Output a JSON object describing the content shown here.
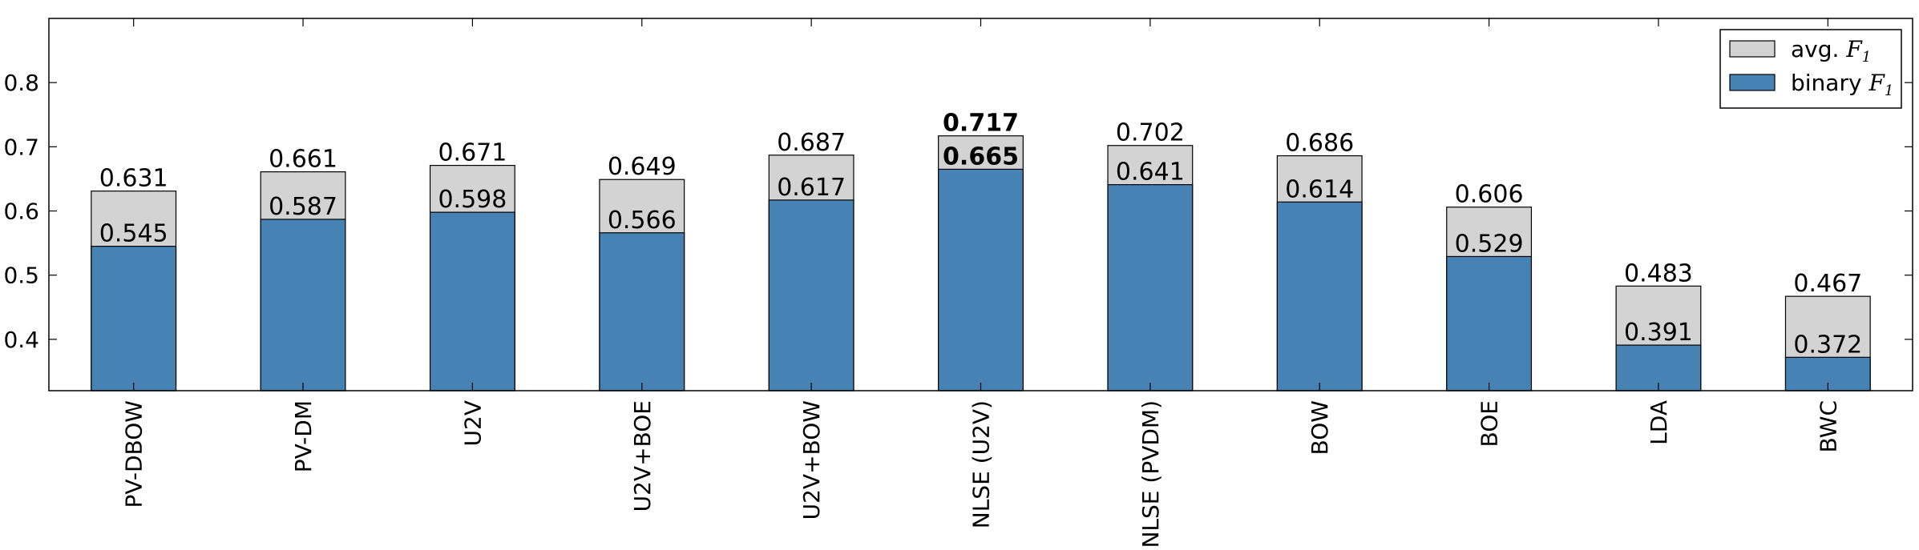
{
  "chart_data": {
    "type": "bar",
    "categories": [
      "PV-DBOW",
      "PV-DM",
      "U2V",
      "U2V+BOE",
      "U2V+BOW",
      "NLSE (U2V)",
      "NLSE (PVDM)",
      "BOW",
      "BOE",
      "LDA",
      "BWC"
    ],
    "series": [
      {
        "name": "avg. F1",
        "color": "#d3d3d3",
        "values": [
          0.631,
          0.661,
          0.671,
          0.649,
          0.687,
          0.717,
          0.702,
          0.686,
          0.606,
          0.483,
          0.467
        ],
        "value_labels": [
          "0.631",
          "0.661",
          "0.671",
          "0.649",
          "0.687",
          "0.717",
          "0.702",
          "0.686",
          "0.606",
          "0.483",
          "0.467"
        ]
      },
      {
        "name": "binary F1",
        "color": "#4682b4",
        "values": [
          0.545,
          0.587,
          0.598,
          0.566,
          0.617,
          0.665,
          0.641,
          0.614,
          0.529,
          0.391,
          0.372
        ],
        "value_labels": [
          "0.545",
          "0.587",
          "0.598",
          "0.566",
          "0.617",
          "0.665",
          "0.641",
          "0.614",
          "0.529",
          "0.391",
          "0.372"
        ]
      }
    ],
    "highlight_index": 5,
    "ylim": [
      0.32,
      0.9
    ],
    "yticks": [
      "0.4",
      "0.5",
      "0.6",
      "0.7",
      "0.8"
    ],
    "legend": {
      "position": "top-right",
      "entries": [
        {
          "text": "avg. ",
          "math": "F",
          "sub": "1"
        },
        {
          "text": "binary ",
          "math": "F",
          "sub": "1"
        }
      ]
    },
    "grid": false
  }
}
